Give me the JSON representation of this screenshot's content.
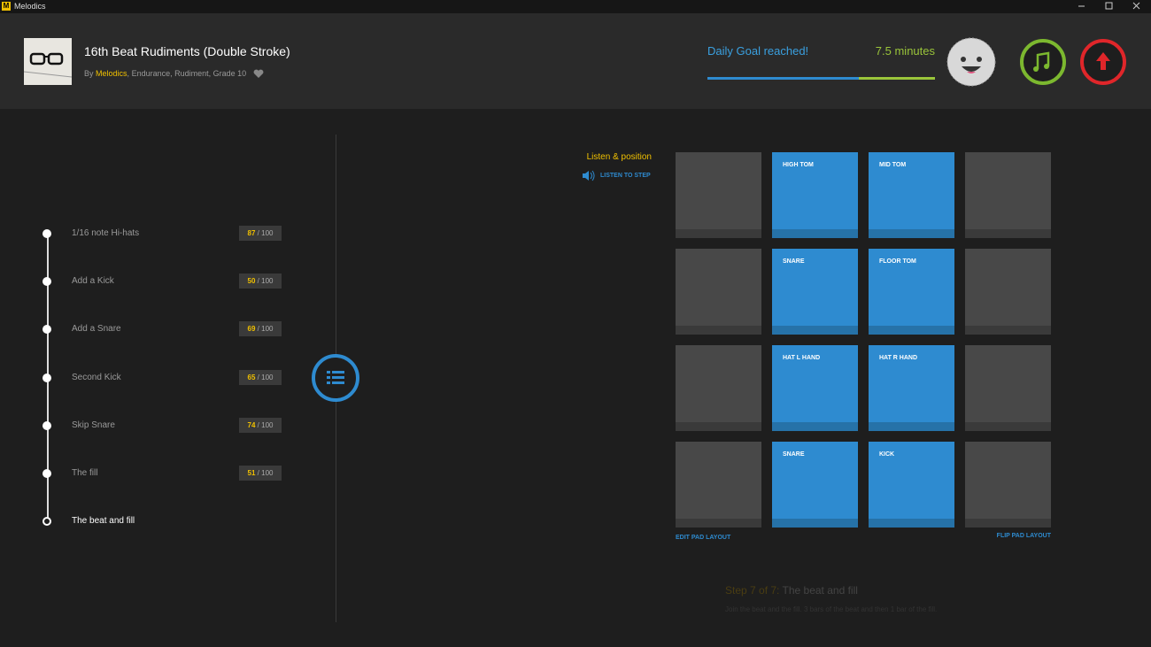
{
  "window": {
    "icon": "M",
    "title": "Melodics"
  },
  "lesson": {
    "title": "16th Beat Rudiments (Double Stroke)",
    "by": "By",
    "author": "Melodics",
    "tags": "Endurance, Rudiment, Grade 10"
  },
  "goal": {
    "status": "Daily Goal reached!",
    "minutes": "7.5 minutes"
  },
  "steps": [
    {
      "label": "1/16 note Hi-hats",
      "score": 87,
      "out_of": "/ 100"
    },
    {
      "label": "Add a Kick",
      "score": 50,
      "out_of": "/ 100"
    },
    {
      "label": "Add a Snare",
      "score": 69,
      "out_of": "/ 100"
    },
    {
      "label": "Second Kick",
      "score": 65,
      "out_of": "/ 100"
    },
    {
      "label": "Skip Snare",
      "score": 74,
      "out_of": "/ 100"
    },
    {
      "label": "The fill",
      "score": 51,
      "out_of": "/ 100"
    },
    {
      "label": "The beat and fill"
    }
  ],
  "panel": {
    "heading": "Listen & position",
    "listen": "LISTEN TO STEP",
    "edit": "EDIT PAD LAYOUT",
    "flip": "FLIP PAD LAYOUT"
  },
  "pads": [
    [
      null,
      "HIGH TOM",
      "MID TOM",
      null
    ],
    [
      null,
      "SNARE",
      "FLOOR TOM",
      null
    ],
    [
      null,
      "HAT L HAND",
      "HAT R HAND",
      null
    ],
    [
      null,
      "SNARE",
      "KICK",
      null
    ]
  ],
  "footer": {
    "step": "Step 7 of 7:",
    "name": "The beat and fill",
    "description": "Join the beat and the fill. 3 bars of the beat and then 1 bar of the fill."
  }
}
